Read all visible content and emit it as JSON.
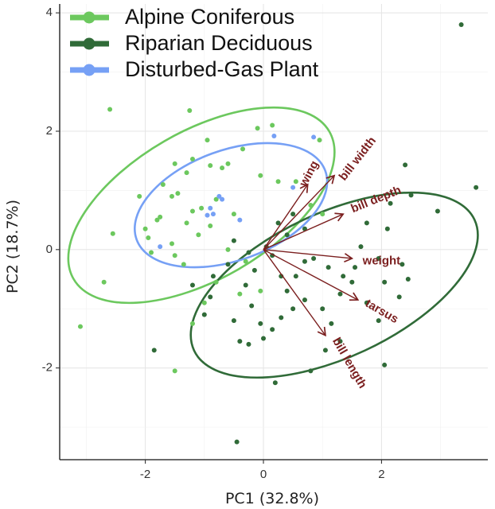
{
  "chart_data": {
    "type": "scatter",
    "xlabel": "PC1 (32.8%)",
    "ylabel": "PC2 (18.7%)",
    "xlim": [
      -3.45,
      3.8
    ],
    "ylim": [
      -3.55,
      4.15
    ],
    "x_ticks": [
      -2,
      0,
      2
    ],
    "y_ticks": [
      -2,
      0,
      2,
      4
    ],
    "grid": true,
    "legend_position": "top-left",
    "series": [
      {
        "name": "Alpine Coniferous",
        "color": "#6cc85e",
        "points": [
          [
            -2.6,
            2.37
          ],
          [
            -1.25,
            2.35
          ],
          [
            0.15,
            2.1
          ],
          [
            -0.1,
            2.05
          ],
          [
            -0.95,
            1.85
          ],
          [
            -0.35,
            1.7
          ],
          [
            -1.2,
            1.53
          ],
          [
            -1.5,
            1.45
          ],
          [
            -0.7,
            1.38
          ],
          [
            -1.3,
            1.3
          ],
          [
            -0.9,
            1.42
          ],
          [
            -0.6,
            1.45
          ],
          [
            -0.05,
            1.25
          ],
          [
            0.25,
            1.15
          ],
          [
            -1.7,
            1.1
          ],
          [
            -1.55,
            0.9
          ],
          [
            -2.1,
            0.9
          ],
          [
            -0.8,
            0.85
          ],
          [
            -1.45,
            0.95
          ],
          [
            -1.2,
            0.65
          ],
          [
            -0.5,
            0.6
          ],
          [
            -1.8,
            0.5
          ],
          [
            -1.75,
            0.55
          ],
          [
            -1.05,
            0.7
          ],
          [
            -1.3,
            0.45
          ],
          [
            -0.9,
            0.4
          ],
          [
            -2.0,
            0.35
          ],
          [
            -2.55,
            0.27
          ],
          [
            -1.95,
            0.2
          ],
          [
            -1.55,
            0.1
          ],
          [
            -1.5,
            -0.1
          ],
          [
            -1.35,
            -0.25
          ],
          [
            -1.1,
            0.25
          ],
          [
            -0.6,
            0.0
          ],
          [
            -0.3,
            -0.2
          ],
          [
            -1.9,
            -0.05
          ],
          [
            -2.7,
            -0.55
          ],
          [
            -3.1,
            -1.3
          ],
          [
            -1.5,
            -2.05
          ],
          [
            -1.2,
            -1.25
          ],
          [
            -1.0,
            -0.9
          ],
          [
            -0.8,
            -0.55
          ],
          [
            -0.4,
            -0.75
          ],
          [
            -0.05,
            -0.7
          ],
          [
            0.8,
            0.75
          ],
          [
            1.0,
            0.6
          ],
          [
            0.95,
            1.85
          ],
          [
            0.55,
            1.15
          ]
        ]
      },
      {
        "name": "Riparian Deciduous",
        "color": "#306b38",
        "points": [
          [
            3.35,
            3.8
          ],
          [
            3.6,
            1.05
          ],
          [
            2.4,
            1.43
          ],
          [
            2.5,
            0.92
          ],
          [
            2.95,
            0.65
          ],
          [
            2.15,
            0.78
          ],
          [
            1.75,
            0.45
          ],
          [
            2.1,
            0.35
          ],
          [
            1.65,
            0.05
          ],
          [
            1.95,
            -0.15
          ],
          [
            1.5,
            -0.55
          ],
          [
            2.05,
            -0.55
          ],
          [
            2.3,
            -0.8
          ],
          [
            2.45,
            -0.5
          ],
          [
            2.35,
            -0.25
          ],
          [
            1.75,
            -0.9
          ],
          [
            1.95,
            -1.2
          ],
          [
            1.15,
            -1.25
          ],
          [
            1.0,
            -1.0
          ],
          [
            1.3,
            -0.75
          ],
          [
            0.7,
            -0.2
          ],
          [
            0.55,
            -0.45
          ],
          [
            0.4,
            -0.7
          ],
          [
            0.7,
            -0.85
          ],
          [
            0.5,
            -1.0
          ],
          [
            0.3,
            -1.15
          ],
          [
            0.15,
            -1.35
          ],
          [
            -0.05,
            -1.25
          ],
          [
            -0.2,
            -0.95
          ],
          [
            -0.3,
            -0.6
          ],
          [
            -0.15,
            -0.35
          ],
          [
            0.15,
            -0.1
          ],
          [
            0.4,
            0.25
          ],
          [
            0.25,
            0.45
          ],
          [
            0.5,
            0.6
          ],
          [
            0.7,
            0.35
          ],
          [
            1.1,
            -0.3
          ],
          [
            1.35,
            -0.45
          ],
          [
            0.85,
            -0.15
          ],
          [
            0.05,
            0.05
          ],
          [
            -0.5,
            0.15
          ],
          [
            -0.6,
            -0.25
          ],
          [
            -0.85,
            -0.45
          ],
          [
            -0.9,
            -0.8
          ],
          [
            -1.0,
            -1.1
          ],
          [
            -0.5,
            -1.2
          ],
          [
            -0.4,
            -1.55
          ],
          [
            0.0,
            -1.5
          ],
          [
            -0.25,
            -1.6
          ],
          [
            0.2,
            -2.25
          ],
          [
            0.8,
            -2.05
          ],
          [
            1.3,
            -1.55
          ],
          [
            1.05,
            -1.7
          ],
          [
            2.05,
            -1.95
          ],
          [
            -1.85,
            -1.7
          ],
          [
            -0.45,
            -3.25
          ],
          [
            -1.2,
            -0.6
          ],
          [
            -0.25,
            -0.05
          ],
          [
            0.3,
            -0.45
          ],
          [
            1.55,
            -0.3
          ]
        ]
      },
      {
        "name": "Disturbed-Gas Plant",
        "color": "#76a0f5",
        "points": [
          [
            0.18,
            1.92
          ],
          [
            -0.75,
            0.9
          ],
          [
            -0.9,
            0.7
          ],
          [
            -0.85,
            0.6
          ],
          [
            -0.95,
            0.58
          ],
          [
            -0.4,
            0.5
          ],
          [
            -0.7,
            0.85
          ],
          [
            -1.75,
            0.05
          ],
          [
            0.5,
            1.05
          ],
          [
            0.85,
            1.9
          ]
        ]
      }
    ],
    "ellipses": [
      {
        "series": "Alpine Coniferous",
        "cx": -1.05,
        "cy": 0.75,
        "rx": 2.5,
        "ry": 1.25,
        "angle_deg": 30,
        "color": "#6cc85e"
      },
      {
        "series": "Riparian Deciduous",
        "cx": 1.2,
        "cy": -0.6,
        "rx": 2.62,
        "ry": 1.22,
        "angle_deg": 25,
        "color": "#306b38"
      },
      {
        "series": "Disturbed-Gas Plant",
        "cx": -0.55,
        "cy": 0.75,
        "rx": 1.7,
        "ry": 0.93,
        "angle_deg": 20,
        "color": "#76a0f5"
      }
    ],
    "loadings": [
      {
        "label": "wing",
        "x": 0.75,
        "y": 1.1,
        "label_x": 0.78,
        "label_y": 1.28,
        "rotate": -62
      },
      {
        "label": "bill width",
        "x": 1.2,
        "y": 1.25,
        "label_x": 1.6,
        "label_y": 1.53,
        "rotate": -52
      },
      {
        "label": "bill depth",
        "x": 1.35,
        "y": 0.6,
        "label_x": 1.91,
        "label_y": 0.84,
        "rotate": -22
      },
      {
        "label": "weight",
        "x": 1.5,
        "y": -0.15,
        "label_x": 2.0,
        "label_y": -0.2,
        "rotate": 0
      },
      {
        "label": "tarsus",
        "x": 1.6,
        "y": -0.85,
        "label_x": 2.0,
        "label_y": -1.05,
        "rotate": 30
      },
      {
        "label": "bill length",
        "x": 1.05,
        "y": -1.45,
        "label_x": 1.45,
        "label_y": -1.92,
        "rotate": 60
      }
    ],
    "loading_color": "#7b1f1f"
  }
}
